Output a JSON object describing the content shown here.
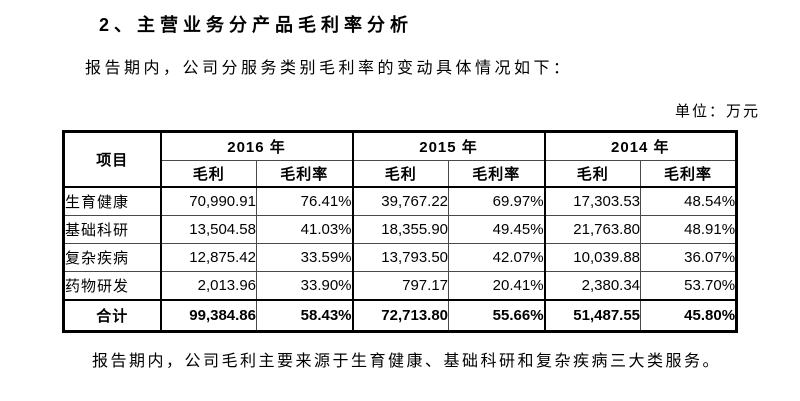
{
  "page": {
    "heading": "2、主营业务分产品毛利率分析",
    "intro": "报告期内，公司分服务类别毛利率的变动具体情况如下：",
    "unit_label": "单位：万元",
    "summary": "报告期内，公司毛利主要来源于生育健康、基础科研和复杂疾病三大类服务。"
  },
  "table": {
    "corner_header": "项目",
    "year_headers": [
      "2016 年",
      "2015 年",
      "2014 年"
    ],
    "sub_headers": [
      "毛利",
      "毛利率"
    ],
    "rows": [
      {
        "label": "生育健康",
        "values": [
          "70,990.91",
          "76.41%",
          "39,767.22",
          "69.97%",
          "17,303.53",
          "48.54%"
        ]
      },
      {
        "label": "基础科研",
        "values": [
          "13,504.58",
          "41.03%",
          "18,355.90",
          "49.45%",
          "21,763.80",
          "48.91%"
        ]
      },
      {
        "label": "复杂疾病",
        "values": [
          "12,875.42",
          "33.59%",
          "13,793.50",
          "42.07%",
          "10,039.88",
          "36.07%"
        ]
      },
      {
        "label": "药物研发",
        "values": [
          "2,013.96",
          "33.90%",
          "797.17",
          "20.41%",
          "2,380.34",
          "53.70%"
        ]
      }
    ],
    "total_row": {
      "label": "合计",
      "values": [
        "99,384.86",
        "58.43%",
        "72,713.80",
        "55.66%",
        "51,487.55",
        "45.80%"
      ]
    }
  }
}
